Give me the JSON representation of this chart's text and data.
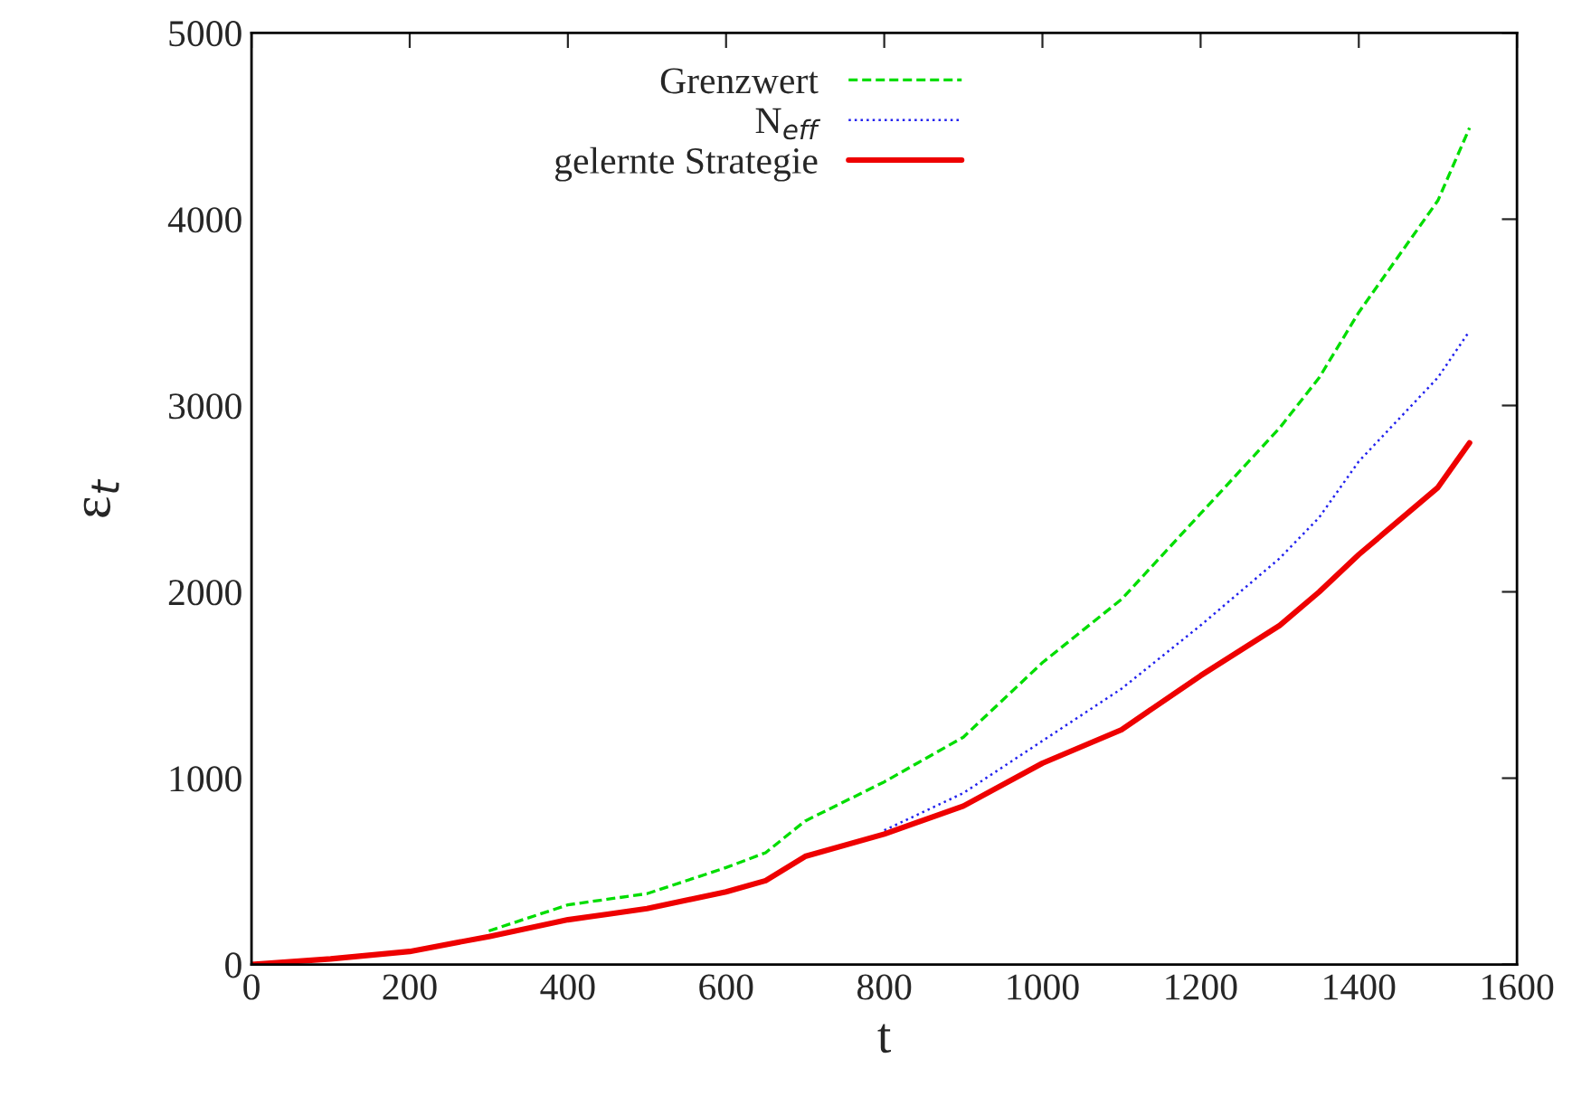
{
  "chart_data": {
    "type": "line",
    "xlabel": "t",
    "ylabel": "ε$_{t}$",
    "xlim": [
      0,
      1600
    ],
    "xticks": [
      0,
      200,
      400,
      600,
      800,
      1000,
      1200,
      1400,
      1600
    ],
    "ylim": [
      0,
      5000
    ],
    "yticks": [
      0,
      1000,
      2000,
      3000,
      4000,
      5000
    ],
    "grid": false,
    "legend": "top",
    "series": [
      {
        "name": "Grenzwert",
        "color": "#00dd00",
        "line_style": "dashed",
        "x": [
          300,
          400,
          450,
          500,
          600,
          650,
          700,
          800,
          900,
          1000,
          1100,
          1200,
          1300,
          1350,
          1400,
          1500,
          1540
        ],
        "values": [
          180,
          320,
          350,
          380,
          520,
          600,
          770,
          980,
          1220,
          1620,
          1960,
          2420,
          2880,
          3150,
          3500,
          4100,
          4490
        ]
      },
      {
        "name": "N$_{eff}$",
        "color": "#2222ee",
        "line_style": "dotted",
        "x": [
          800,
          900,
          1000,
          1100,
          1200,
          1300,
          1350,
          1400,
          1500,
          1540
        ],
        "values": [
          720,
          920,
          1200,
          1480,
          1820,
          2180,
          2400,
          2700,
          3150,
          3400
        ]
      },
      {
        "name": "gelernte Strategie",
        "color": "#ee0000",
        "line_style": "solid",
        "x": [
          0,
          100,
          200,
          300,
          400,
          450,
          500,
          600,
          650,
          700,
          800,
          900,
          1000,
          1100,
          1200,
          1300,
          1350,
          1400,
          1500,
          1540
        ],
        "values": [
          0,
          30,
          70,
          150,
          240,
          270,
          300,
          390,
          450,
          580,
          700,
          850,
          1080,
          1260,
          1550,
          1820,
          2000,
          2200,
          2560,
          2800
        ]
      }
    ]
  }
}
